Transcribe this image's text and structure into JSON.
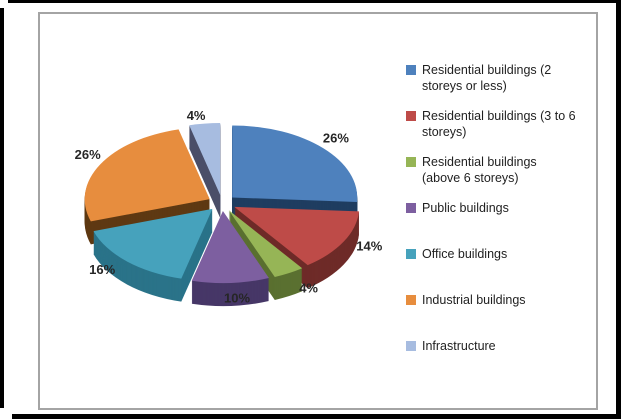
{
  "frame": {
    "outer_border_color": "#000000",
    "inner_border_color": "#a4a4a4",
    "background": "#ffffff"
  },
  "chart_data": {
    "type": "pie",
    "variant": "3d-exploded",
    "title": "",
    "legend_position": "right",
    "total": 100,
    "label_color": "#262626",
    "legend_text_color": "#1f1f1f",
    "slices": [
      {
        "key": "residential-2-storeys-or-less",
        "label": "Residential buildings (2 storeys or less)",
        "legend_lines": [
          "Residential buildings (2",
          "storeys or less)"
        ],
        "value": 26,
        "data_label": "26%",
        "color": "#4E81BD",
        "side_color": "#1F3D60"
      },
      {
        "key": "residential-3-to-6-storeys",
        "label": "Residential buildings (3 to 6 storeys)",
        "legend_lines": [
          "Residential buildings (3 to 6",
          "storeys)"
        ],
        "value": 14,
        "data_label": "14%",
        "color": "#BE4B48",
        "side_color": "#6E2B28"
      },
      {
        "key": "residential-above-6-storeys",
        "label": "Residential buildings (above 6 storeys)",
        "legend_lines": [
          "Residential buildings",
          "(above 6 storeys)"
        ],
        "value": 4,
        "data_label": "4%",
        "color": "#96B556",
        "side_color": "#5A7030"
      },
      {
        "key": "public-buildings",
        "label": "Public buildings",
        "legend_lines": [
          "Public buildings"
        ],
        "value": 10,
        "data_label": "10%",
        "color": "#7D5FA0",
        "side_color": "#463767"
      },
      {
        "key": "office-buildings",
        "label": "Office buildings",
        "legend_lines": [
          "Office buildings"
        ],
        "value": 16,
        "data_label": "16%",
        "color": "#46A2BC",
        "side_color": "#2A7389"
      },
      {
        "key": "industrial-buildings",
        "label": "Industrial buildings",
        "legend_lines": [
          "Industrial buildings"
        ],
        "value": 26,
        "data_label": "26%",
        "color": "#E78D3E",
        "side_color": "#5E3912"
      },
      {
        "key": "infrastructure",
        "label": "Infrastructure",
        "legend_lines": [
          "Infrastructure"
        ],
        "value": 4,
        "data_label": "4%",
        "color": "#A7BCE0",
        "side_color": "#4A4E68"
      }
    ]
  }
}
